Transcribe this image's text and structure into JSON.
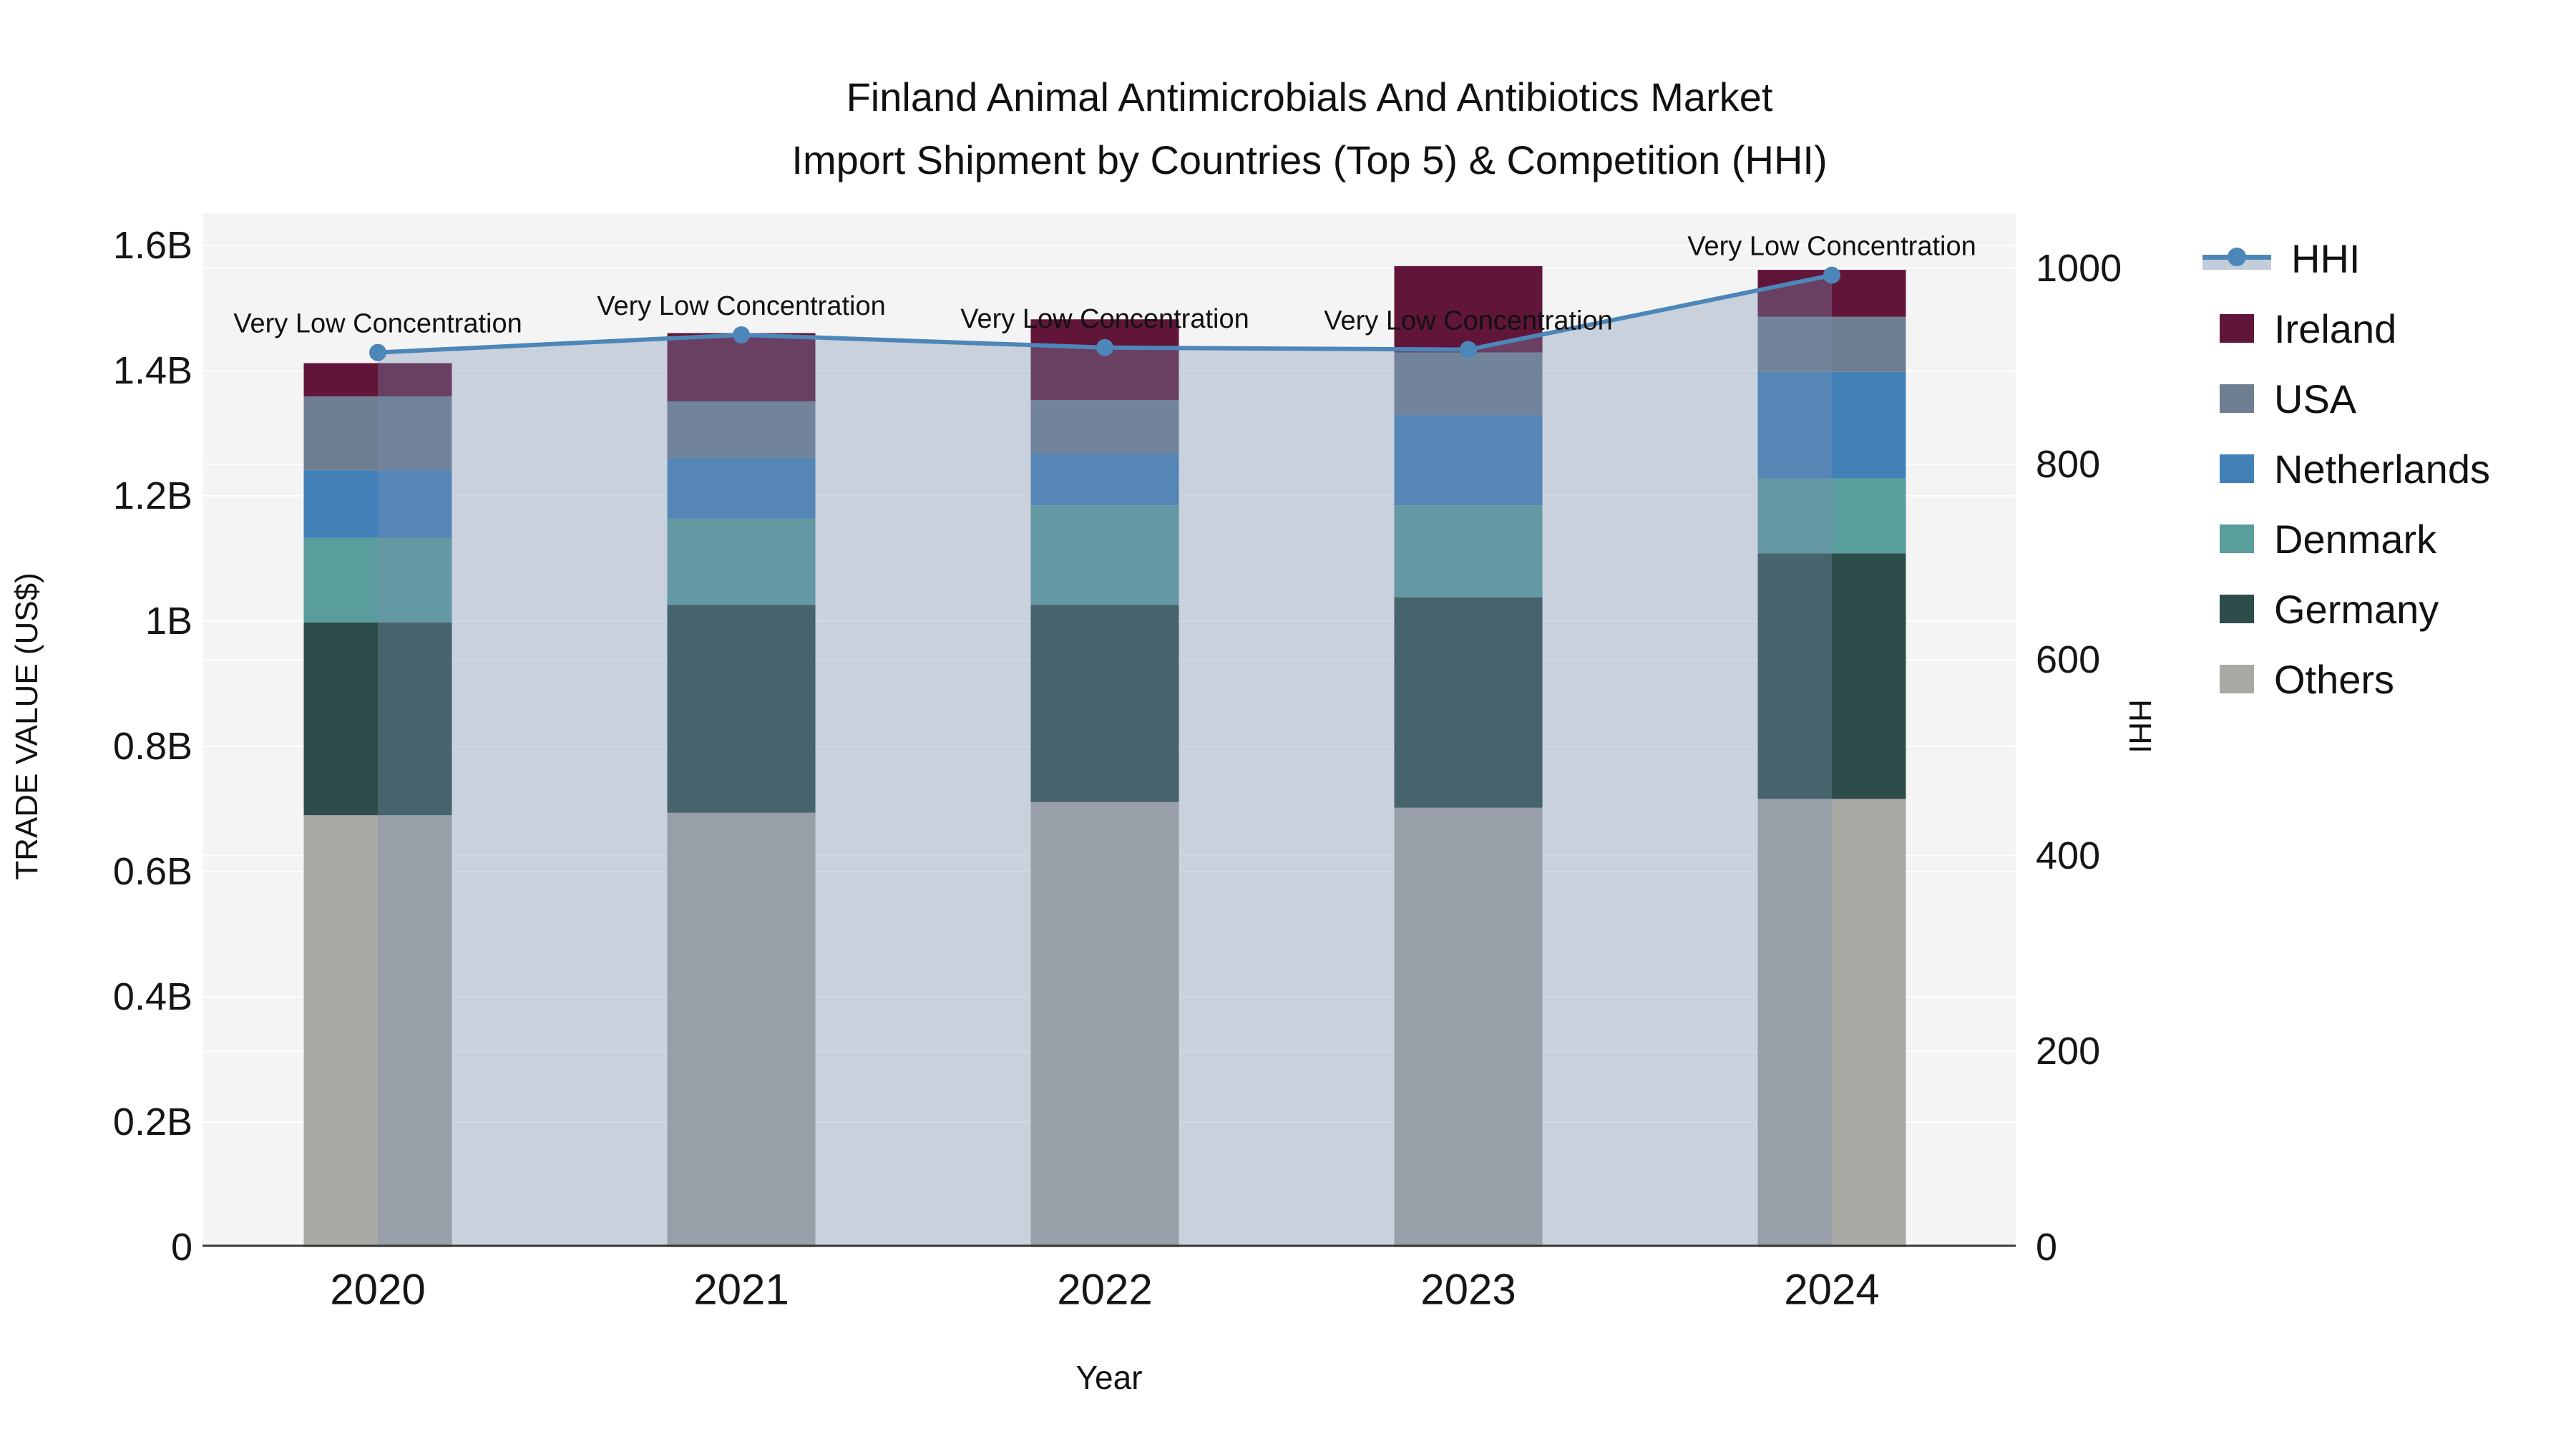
{
  "title": {
    "line1": "Finland Animal Antimicrobials And Antibiotics Market",
    "line2": "Import Shipment by Countries (Top 5) & Competition (HHI)"
  },
  "axes": {
    "x": {
      "title": "Year",
      "categories": [
        "2020",
        "2021",
        "2022",
        "2023",
        "2024"
      ]
    },
    "left": {
      "title": "TRADE VALUE (US$)",
      "tick_labels": [
        "0",
        "0.2B",
        "0.4B",
        "0.6B",
        "0.8B",
        "1B",
        "1.2B",
        "1.4B",
        "1.6B"
      ],
      "tick_values": [
        0,
        0.2,
        0.4,
        0.6,
        0.8,
        1.0,
        1.2,
        1.4,
        1.6
      ]
    },
    "right": {
      "title": "HHI",
      "tick_labels": [
        "0",
        "200",
        "400",
        "600",
        "800",
        "1000"
      ],
      "tick_values": [
        0,
        200,
        400,
        600,
        800,
        1000
      ]
    }
  },
  "legend": {
    "items": [
      {
        "label": "HHI",
        "type": "line",
        "color": "#4d86b8"
      },
      {
        "label": "Ireland",
        "type": "swatch",
        "color": "#611539"
      },
      {
        "label": "USA",
        "type": "swatch",
        "color": "#6f7f91"
      },
      {
        "label": "Netherlands",
        "type": "swatch",
        "color": "#4281b8"
      },
      {
        "label": "Denmark",
        "type": "swatch",
        "color": "#5a9d9d"
      },
      {
        "label": "Germany",
        "type": "swatch",
        "color": "#2d4d4a"
      },
      {
        "label": "Others",
        "type": "swatch",
        "color": "#a9a8a5"
      }
    ]
  },
  "chart_data": {
    "type": "stacked-bar+line",
    "categories": [
      "2020",
      "2021",
      "2022",
      "2023",
      "2024"
    ],
    "unit": "USD billions",
    "series": [
      {
        "name": "Others",
        "color": "#a9a8a5",
        "values": [
          0.69,
          0.694,
          0.711,
          0.702,
          0.716
        ]
      },
      {
        "name": "Germany",
        "color": "#2d4d4a",
        "values": [
          0.308,
          0.332,
          0.315,
          0.336,
          0.392
        ]
      },
      {
        "name": "Denmark",
        "color": "#5a9d9d",
        "values": [
          0.135,
          0.138,
          0.159,
          0.147,
          0.12
        ]
      },
      {
        "name": "Netherlands",
        "color": "#4281b8",
        "values": [
          0.108,
          0.097,
          0.083,
          0.144,
          0.17
        ]
      },
      {
        "name": "USA",
        "color": "#6f7f91",
        "values": [
          0.118,
          0.09,
          0.085,
          0.1,
          0.088
        ]
      },
      {
        "name": "Ireland",
        "color": "#611539",
        "values": [
          0.053,
          0.109,
          0.129,
          0.138,
          0.075
        ]
      }
    ],
    "bar_totals": [
      1.412,
      1.46,
      1.482,
      1.567,
      1.561
    ],
    "line": {
      "name": "HHI",
      "axis": "right",
      "color": "#4d86b8",
      "fill": "rgba(121,142,175,0.35)",
      "values": [
        914,
        932,
        919,
        917,
        993
      ]
    },
    "annotations": [
      {
        "x": "2020",
        "text": "Very Low Concentration"
      },
      {
        "x": "2021",
        "text": "Very Low Concentration"
      },
      {
        "x": "2022",
        "text": "Very Low Concentration"
      },
      {
        "x": "2023",
        "text": "Very Low Concentration"
      },
      {
        "x": "2024",
        "text": "Very Low Concentration"
      }
    ],
    "ylim_left": [
      0,
      1.6
    ],
    "ylim_right": [
      0,
      1000
    ],
    "xlabel": "Year",
    "ylabel_left": "TRADE VALUE (US$)",
    "ylabel_right": "HHI",
    "plot_bg": "#f4f4f4",
    "grid_color": "#ffffff",
    "legend_position": "right"
  }
}
